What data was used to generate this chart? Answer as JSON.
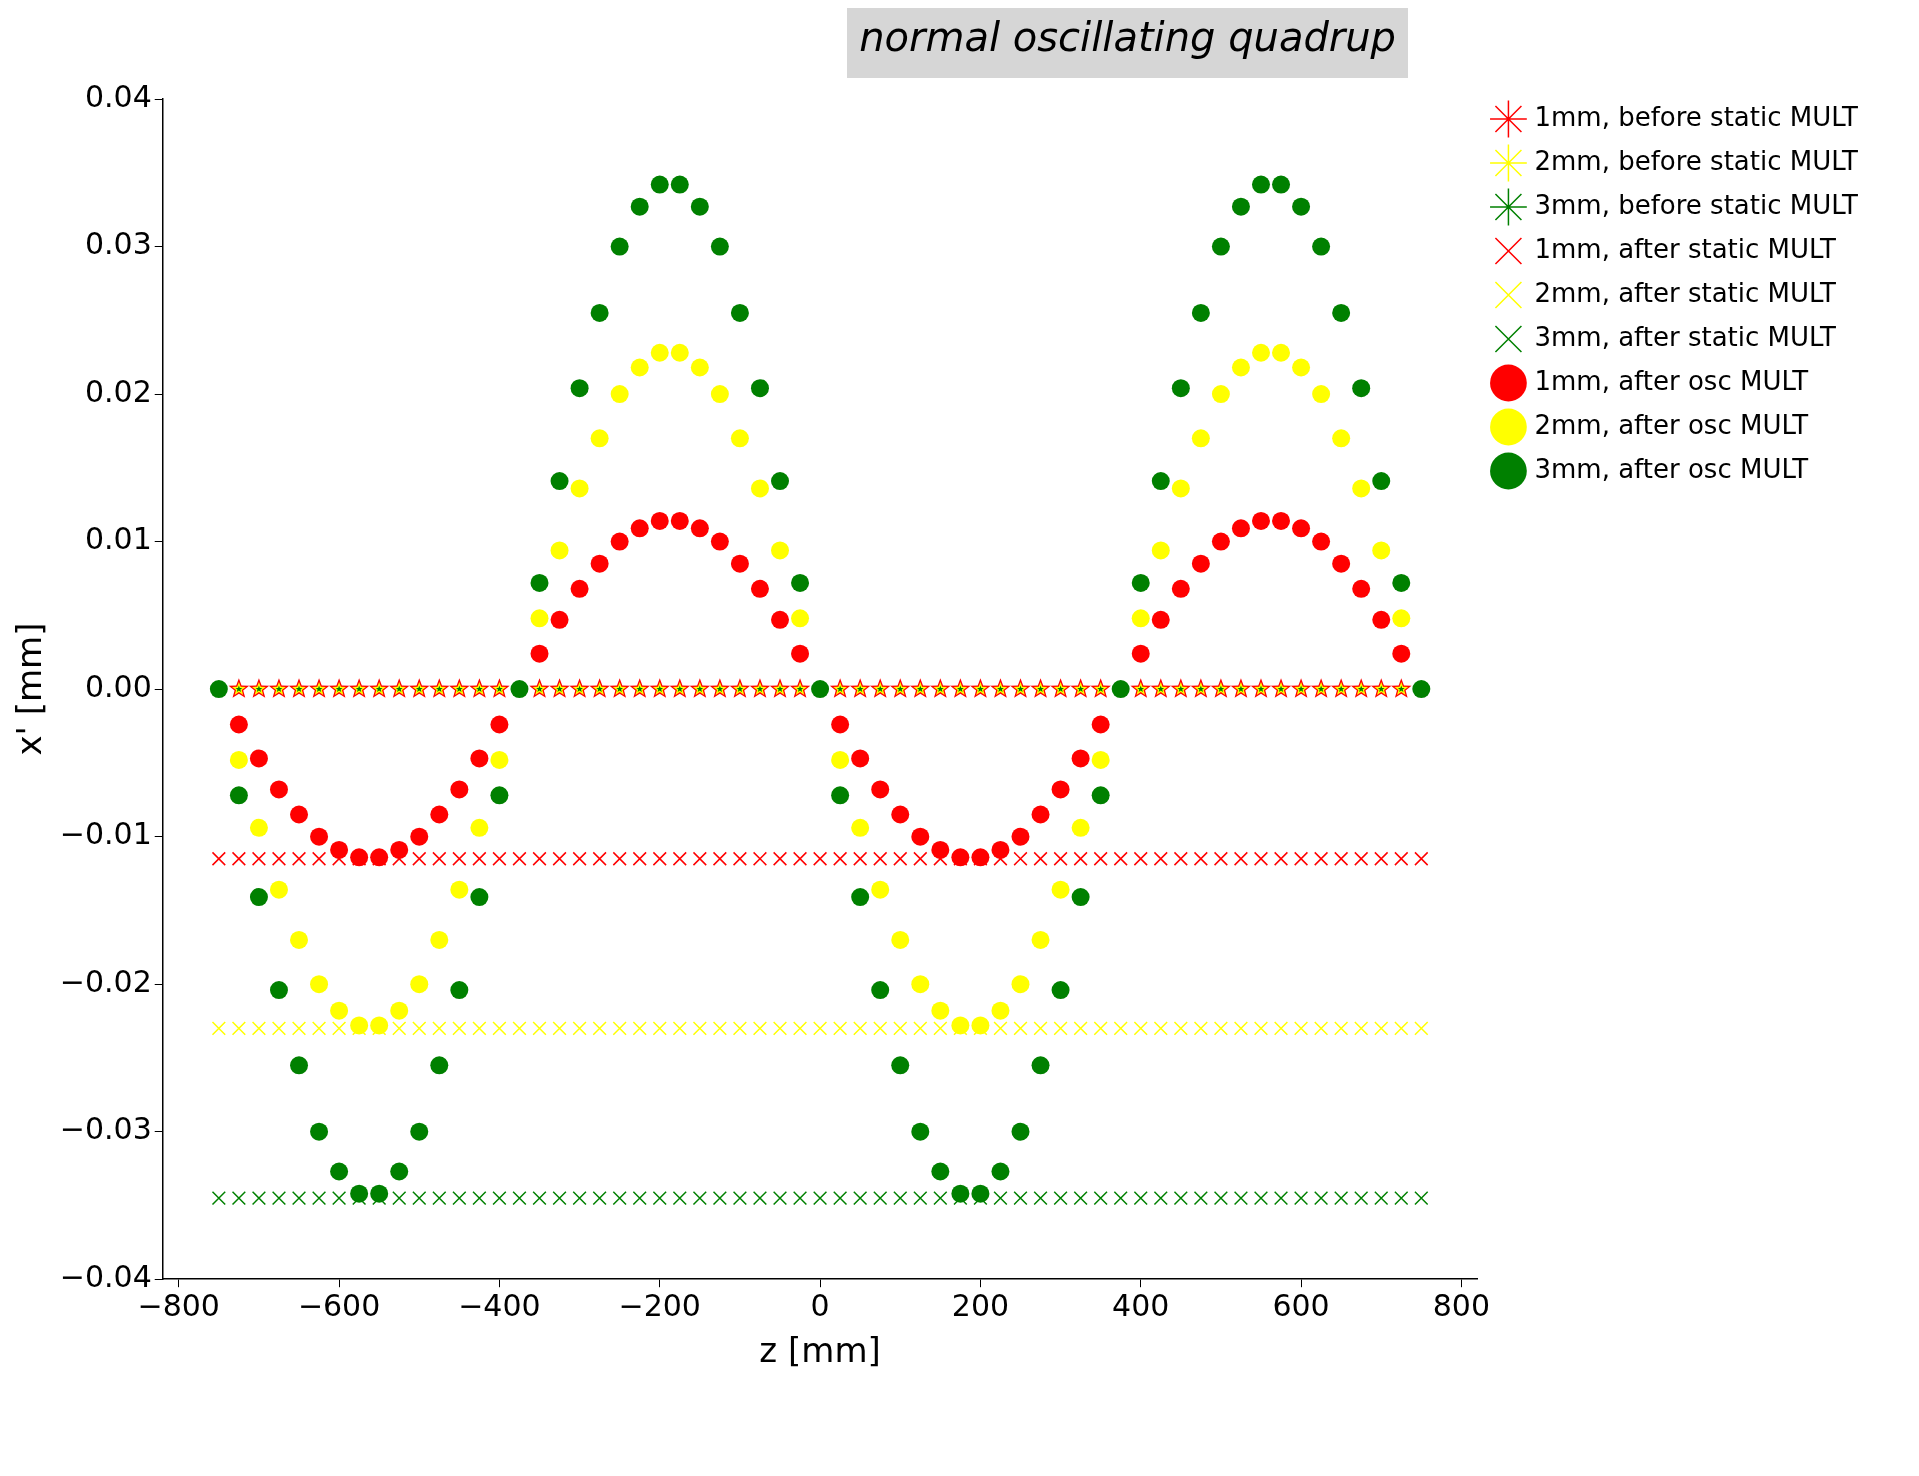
{
  "chart_data": {
    "type": "scatter",
    "xlabel": "z [mm]",
    "ylabel": "x' [mm]",
    "annotations": [
      "normal oscillating quadrup"
    ],
    "xlim": [
      -820,
      820
    ],
    "ylim": [
      -0.04,
      0.04
    ],
    "xticks": [
      {
        "value": -800,
        "label": "−800"
      },
      {
        "value": -600,
        "label": "−600"
      },
      {
        "value": -400,
        "label": "−400"
      },
      {
        "value": -200,
        "label": "−200"
      },
      0,
      200,
      400,
      600,
      800
    ],
    "yticks": [
      {
        "value": -0.04,
        "label": "−0.04"
      },
      {
        "value": -0.03,
        "label": "−0.03"
      },
      {
        "value": -0.02,
        "label": "−0.02"
      },
      {
        "value": -0.01,
        "label": "−0.01"
      },
      {
        "value": 0,
        "label": "0.00"
      },
      {
        "value": 0.01,
        "label": "0.01"
      },
      {
        "value": 0.02,
        "label": "0.02"
      },
      {
        "value": 0.03,
        "label": "0.03"
      },
      {
        "value": 0.04,
        "label": "0.04"
      }
    ],
    "legend": "right",
    "grid": false,
    "x": [
      -750,
      -725,
      -700,
      -675,
      -650,
      -625,
      -600,
      -575,
      -550,
      -525,
      -500,
      -475,
      -450,
      -425,
      -400,
      -375,
      -350,
      -325,
      -300,
      -275,
      -250,
      -225,
      -200,
      -175,
      -150,
      -125,
      -100,
      -75,
      -50,
      -25,
      0,
      25,
      50,
      75,
      100,
      125,
      150,
      175,
      200,
      225,
      250,
      275,
      300,
      325,
      350,
      375,
      400,
      425,
      450,
      475,
      500,
      525,
      550,
      575,
      600,
      625,
      650,
      675,
      700,
      725,
      750
    ],
    "series": [
      {
        "name": "1mm, before static MULT",
        "color": "#ff0000",
        "marker": "star",
        "values": [
          null,
          0,
          0,
          0,
          0,
          0,
          0,
          0,
          0,
          0,
          0,
          0,
          0,
          0,
          0,
          null,
          0,
          0,
          0,
          0,
          0,
          0,
          0,
          0,
          0,
          0,
          0,
          0,
          0,
          0,
          null,
          0,
          0,
          0,
          0,
          0,
          0,
          0,
          0,
          0,
          0,
          0,
          0,
          0,
          0,
          null,
          0,
          0,
          0,
          0,
          0,
          0,
          0,
          0,
          0,
          0,
          0,
          0,
          0,
          0,
          null
        ]
      },
      {
        "name": "2mm, before static MULT",
        "color": "#ffff00",
        "marker": "star",
        "values": [
          null,
          0,
          0,
          0,
          0,
          0,
          0,
          0,
          0,
          0,
          0,
          0,
          0,
          0,
          0,
          null,
          0,
          0,
          0,
          0,
          0,
          0,
          0,
          0,
          0,
          0,
          0,
          0,
          0,
          0,
          null,
          0,
          0,
          0,
          0,
          0,
          0,
          0,
          0,
          0,
          0,
          0,
          0,
          0,
          0,
          null,
          0,
          0,
          0,
          0,
          0,
          0,
          0,
          0,
          0,
          0,
          0,
          0,
          0,
          0,
          null
        ]
      },
      {
        "name": "3mm, before static MULT",
        "color": "#008000",
        "marker": "star",
        "values": [
          null,
          0,
          0,
          0,
          0,
          0,
          0,
          0,
          0,
          0,
          0,
          0,
          0,
          0,
          0,
          null,
          0,
          0,
          0,
          0,
          0,
          0,
          0,
          0,
          0,
          0,
          0,
          0,
          0,
          0,
          null,
          0,
          0,
          0,
          0,
          0,
          0,
          0,
          0,
          0,
          0,
          0,
          0,
          0,
          0,
          null,
          0,
          0,
          0,
          0,
          0,
          0,
          0,
          0,
          0,
          0,
          0,
          0,
          0,
          0,
          null
        ]
      },
      {
        "name": "1mm, after static MULT",
        "color": "#ff0000",
        "marker": "cross",
        "values": [
          -0.0115,
          -0.0115,
          -0.0115,
          -0.0115,
          -0.0115,
          -0.0115,
          -0.0115,
          -0.0115,
          -0.0115,
          -0.0115,
          -0.0115,
          -0.0115,
          -0.0115,
          -0.0115,
          -0.0115,
          -0.0115,
          -0.0115,
          -0.0115,
          -0.0115,
          -0.0115,
          -0.0115,
          -0.0115,
          -0.0115,
          -0.0115,
          -0.0115,
          -0.0115,
          -0.0115,
          -0.0115,
          -0.0115,
          -0.0115,
          -0.0115,
          -0.0115,
          -0.0115,
          -0.0115,
          -0.0115,
          -0.0115,
          -0.0115,
          -0.0115,
          -0.0115,
          -0.0115,
          -0.0115,
          -0.0115,
          -0.0115,
          -0.0115,
          -0.0115,
          -0.0115,
          -0.0115,
          -0.0115,
          -0.0115,
          -0.0115,
          -0.0115,
          -0.0115,
          -0.0115,
          -0.0115,
          -0.0115,
          -0.0115,
          -0.0115,
          -0.0115,
          -0.0115,
          -0.0115,
          -0.0115
        ]
      },
      {
        "name": "2mm, after static MULT",
        "color": "#ffff00",
        "marker": "cross",
        "values": [
          -0.023,
          -0.023,
          -0.023,
          -0.023,
          -0.023,
          -0.023,
          -0.023,
          -0.023,
          -0.023,
          -0.023,
          -0.023,
          -0.023,
          -0.023,
          -0.023,
          -0.023,
          -0.023,
          -0.023,
          -0.023,
          -0.023,
          -0.023,
          -0.023,
          -0.023,
          -0.023,
          -0.023,
          -0.023,
          -0.023,
          -0.023,
          -0.023,
          -0.023,
          -0.023,
          -0.023,
          -0.023,
          -0.023,
          -0.023,
          -0.023,
          -0.023,
          -0.023,
          -0.023,
          -0.023,
          -0.023,
          -0.023,
          -0.023,
          -0.023,
          -0.023,
          -0.023,
          -0.023,
          -0.023,
          -0.023,
          -0.023,
          -0.023,
          -0.023,
          -0.023,
          -0.023,
          -0.023,
          -0.023,
          -0.023,
          -0.023,
          -0.023,
          -0.023,
          -0.023,
          -0.023
        ]
      },
      {
        "name": "3mm, after static MULT",
        "color": "#008000",
        "marker": "cross",
        "values": [
          -0.0345,
          -0.0345,
          -0.0345,
          -0.0345,
          -0.0345,
          -0.0345,
          -0.0345,
          -0.0345,
          -0.0345,
          -0.0345,
          -0.0345,
          -0.0345,
          -0.0345,
          -0.0345,
          -0.0345,
          -0.0345,
          -0.0345,
          -0.0345,
          -0.0345,
          -0.0345,
          -0.0345,
          -0.0345,
          -0.0345,
          -0.0345,
          -0.0345,
          -0.0345,
          -0.0345,
          -0.0345,
          -0.0345,
          -0.0345,
          -0.0345,
          -0.0345,
          -0.0345,
          -0.0345,
          -0.0345,
          -0.0345,
          -0.0345,
          -0.0345,
          -0.0345,
          -0.0345,
          -0.0345,
          -0.0345,
          -0.0345,
          -0.0345,
          -0.0345,
          -0.0345,
          -0.0345,
          -0.0345,
          -0.0345,
          -0.0345,
          -0.0345,
          -0.0345,
          -0.0345,
          -0.0345,
          -0.0345,
          -0.0345,
          -0.0345,
          -0.0345,
          -0.0345,
          -0.0345,
          -0.0345
        ]
      },
      {
        "name": "1mm, after osc MULT",
        "color": "#ff0000",
        "marker": "circle",
        "values": [
          null,
          -0.0024,
          -0.0047,
          -0.0068,
          -0.0085,
          -0.01,
          -0.0109,
          -0.0114,
          -0.0114,
          -0.0109,
          -0.01,
          -0.0085,
          -0.0068,
          -0.0047,
          -0.0024,
          null,
          0.0024,
          0.0047,
          0.0068,
          0.0085,
          0.01,
          0.0109,
          0.0114,
          0.0114,
          0.0109,
          0.01,
          0.0085,
          0.0068,
          0.0047,
          0.0024,
          null,
          -0.0024,
          -0.0047,
          -0.0068,
          -0.0085,
          -0.01,
          -0.0109,
          -0.0114,
          -0.0114,
          -0.0109,
          -0.01,
          -0.0085,
          -0.0068,
          -0.0047,
          -0.0024,
          null,
          0.0024,
          0.0047,
          0.0068,
          0.0085,
          0.01,
          0.0109,
          0.0114,
          0.0114,
          0.0109,
          0.01,
          0.0085,
          0.0068,
          0.0047,
          0.0024,
          null
        ]
      },
      {
        "name": "2mm, after osc MULT",
        "color": "#ffff00",
        "marker": "circle",
        "values": [
          null,
          -0.0048,
          -0.0094,
          -0.0136,
          -0.017,
          -0.02,
          -0.0218,
          -0.0228,
          -0.0228,
          -0.0218,
          -0.02,
          -0.017,
          -0.0136,
          -0.0094,
          -0.0048,
          null,
          0.0048,
          0.0094,
          0.0136,
          0.017,
          0.02,
          0.0218,
          0.0228,
          0.0228,
          0.0218,
          0.02,
          0.017,
          0.0136,
          0.0094,
          0.0048,
          null,
          -0.0048,
          -0.0094,
          -0.0136,
          -0.017,
          -0.02,
          -0.0218,
          -0.0228,
          -0.0228,
          -0.0218,
          -0.02,
          -0.017,
          -0.0136,
          -0.0094,
          -0.0048,
          null,
          0.0048,
          0.0094,
          0.0136,
          0.017,
          0.02,
          0.0218,
          0.0228,
          0.0228,
          0.0218,
          0.02,
          0.017,
          0.0136,
          0.0094,
          0.0048,
          null
        ]
      },
      {
        "name": "3mm, after osc MULT",
        "color": "#008000",
        "marker": "circle",
        "values": [
          0,
          -0.0072,
          -0.0141,
          -0.0204,
          -0.0255,
          -0.03,
          -0.0327,
          -0.0342,
          -0.0342,
          -0.0327,
          -0.03,
          -0.0255,
          -0.0204,
          -0.0141,
          -0.0072,
          0,
          0.0072,
          0.0141,
          0.0204,
          0.0255,
          0.03,
          0.0327,
          0.0342,
          0.0342,
          0.0327,
          0.03,
          0.0255,
          0.0204,
          0.0141,
          0.0072,
          0,
          -0.0072,
          -0.0141,
          -0.0204,
          -0.0255,
          -0.03,
          -0.0327,
          -0.0342,
          -0.0342,
          -0.0327,
          -0.03,
          -0.0255,
          -0.0204,
          -0.0141,
          -0.0072,
          0,
          0.0072,
          0.0141,
          0.0204,
          0.0255,
          0.03,
          0.0327,
          0.0342,
          0.0342,
          0.0327,
          0.03,
          0.0255,
          0.0204,
          0.0141,
          0.0072,
          0
        ]
      }
    ]
  }
}
